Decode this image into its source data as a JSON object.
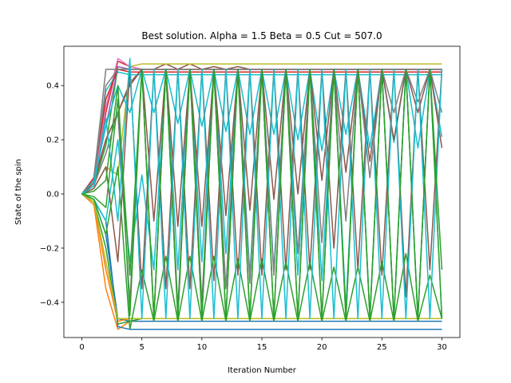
{
  "chart_data": {
    "type": "line",
    "title": "Best solution. Alpha = 1.5 Beta = 0.5 Cut = 507.0",
    "xlabel": "Iteration Number",
    "ylabel": "State of the spin",
    "xlim": [
      -1.5,
      31.5
    ],
    "ylim": [
      -0.53,
      0.545
    ],
    "xticks": [
      0,
      5,
      10,
      15,
      20,
      25,
      30
    ],
    "yticks": [
      -0.4,
      -0.2,
      0.0,
      0.2,
      0.4
    ],
    "grid": false,
    "x": [
      0,
      1,
      2,
      3,
      4,
      5,
      6,
      7,
      8,
      9,
      10,
      11,
      12,
      13,
      14,
      15,
      16,
      17,
      18,
      19,
      20,
      21,
      22,
      23,
      24,
      25,
      26,
      27,
      28,
      29,
      30
    ],
    "series": [
      {
        "color": "#1f77b4",
        "values": [
          0,
          -0.02,
          -0.15,
          -0.46,
          -0.47,
          -0.47,
          -0.47,
          -0.47,
          -0.47,
          -0.47,
          -0.47,
          -0.47,
          -0.47,
          -0.47,
          -0.47,
          -0.47,
          -0.47,
          -0.47,
          -0.47,
          -0.47,
          -0.47,
          -0.47,
          -0.47,
          -0.47,
          -0.47,
          -0.47,
          -0.47,
          -0.47,
          -0.47,
          -0.47,
          -0.47
        ]
      },
      {
        "color": "#ff7f0e",
        "values": [
          0,
          -0.04,
          -0.35,
          -0.5,
          -0.47,
          -0.46,
          -0.46,
          -0.46,
          -0.46,
          -0.46,
          -0.46,
          -0.46,
          -0.46,
          -0.46,
          -0.46,
          -0.46,
          -0.46,
          -0.46,
          -0.46,
          -0.46,
          -0.46,
          -0.46,
          -0.46,
          -0.46,
          -0.46,
          -0.46,
          -0.46,
          -0.46,
          -0.46,
          -0.46,
          -0.46
        ]
      },
      {
        "color": "#2ca02c",
        "values": [
          0,
          0.03,
          0.18,
          0.47,
          0.46,
          0.46,
          0.46,
          0.46,
          0.46,
          0.46,
          0.46,
          0.46,
          0.46,
          0.46,
          0.46,
          0.46,
          0.46,
          0.46,
          0.46,
          0.46,
          0.46,
          0.46,
          0.46,
          0.46,
          0.46,
          0.46,
          0.46,
          0.46,
          0.46,
          0.46,
          0.46
        ]
      },
      {
        "color": "#d62728",
        "values": [
          0,
          0.05,
          0.3,
          0.49,
          0.47,
          0.46,
          0.46,
          0.46,
          0.46,
          0.46,
          0.46,
          0.46,
          0.46,
          0.46,
          0.46,
          0.46,
          0.46,
          0.46,
          0.46,
          0.46,
          0.46,
          0.46,
          0.46,
          0.46,
          0.46,
          0.46,
          0.46,
          0.46,
          0.46,
          0.46,
          0.46
        ]
      },
      {
        "color": "#9467bd",
        "values": [
          0,
          0.04,
          0.25,
          0.47,
          0.46,
          0.46,
          0.46,
          0.46,
          0.46,
          0.46,
          0.46,
          0.46,
          0.46,
          0.46,
          0.46,
          0.46,
          0.46,
          0.46,
          0.46,
          0.46,
          0.46,
          0.46,
          0.46,
          0.46,
          0.46,
          0.46,
          0.46,
          0.46,
          0.46,
          0.46,
          0.46
        ]
      },
      {
        "color": "#8c564b",
        "values": [
          0,
          0.05,
          0.2,
          0.3,
          0.41,
          0.46,
          0.46,
          0.48,
          0.46,
          0.48,
          0.46,
          0.47,
          0.46,
          0.47,
          0.46,
          0.46,
          0.46,
          0.46,
          0.46,
          0.46,
          0.46,
          0.46,
          0.46,
          0.46,
          0.46,
          0.46,
          0.46,
          0.46,
          0.46,
          0.46,
          0.46
        ]
      },
      {
        "color": "#e377c2",
        "values": [
          0,
          0.04,
          0.32,
          0.5,
          0.47,
          0.46,
          0.46,
          0.46,
          0.46,
          0.46,
          0.46,
          0.46,
          0.46,
          0.46,
          0.46,
          0.46,
          0.46,
          0.46,
          0.46,
          0.46,
          0.46,
          0.46,
          0.46,
          0.46,
          0.46,
          0.46,
          0.46,
          0.46,
          0.46,
          0.46,
          0.46
        ]
      },
      {
        "color": "#7f7f7f",
        "values": [
          0,
          0.06,
          0.46,
          0.46,
          0.46,
          0.46,
          0.46,
          0.46,
          0.46,
          0.46,
          0.46,
          0.46,
          0.46,
          0.46,
          0.46,
          0.46,
          0.46,
          0.46,
          0.46,
          0.46,
          0.46,
          0.46,
          0.46,
          0.46,
          0.46,
          0.46,
          0.46,
          0.46,
          0.46,
          0.46,
          0.46
        ]
      },
      {
        "color": "#bcbd22",
        "values": [
          0,
          0.02,
          0.1,
          0.07,
          0.47,
          0.48,
          0.48,
          0.48,
          0.48,
          0.48,
          0.48,
          0.48,
          0.48,
          0.48,
          0.48,
          0.48,
          0.48,
          0.48,
          0.48,
          0.48,
          0.48,
          0.48,
          0.48,
          0.48,
          0.48,
          0.48,
          0.48,
          0.48,
          0.48,
          0.48,
          0.48
        ]
      },
      {
        "color": "#17becf",
        "values": [
          0,
          0.06,
          0.38,
          0.45,
          0.44,
          0.44,
          0.44,
          0.44,
          0.44,
          0.44,
          0.44,
          0.44,
          0.44,
          0.44,
          0.44,
          0.44,
          0.44,
          0.44,
          0.44,
          0.44,
          0.44,
          0.44,
          0.44,
          0.44,
          0.44,
          0.44,
          0.44,
          0.44,
          0.44,
          0.44,
          0.44
        ]
      },
      {
        "color": "#1f77b4",
        "values": [
          0,
          -0.02,
          -0.1,
          -0.49,
          -0.5,
          -0.5,
          -0.5,
          -0.5,
          -0.5,
          -0.5,
          -0.5,
          -0.5,
          -0.5,
          -0.5,
          -0.5,
          -0.5,
          -0.5,
          -0.5,
          -0.5,
          -0.5,
          -0.5,
          -0.5,
          -0.5,
          -0.5,
          -0.5,
          -0.5,
          -0.5,
          -0.5,
          -0.5,
          -0.5,
          -0.5
        ]
      },
      {
        "color": "#ff7f0e",
        "values": [
          0,
          -0.03,
          -0.28,
          -0.47,
          -0.46,
          -0.46,
          -0.46,
          -0.46,
          -0.46,
          -0.46,
          -0.46,
          -0.46,
          -0.46,
          -0.46,
          -0.46,
          -0.46,
          -0.46,
          -0.46,
          -0.46,
          -0.46,
          -0.46,
          -0.46,
          -0.46,
          -0.46,
          -0.46,
          -0.46,
          -0.46,
          -0.46,
          -0.46,
          -0.46,
          -0.46
        ]
      },
      {
        "color": "#2ca02c",
        "values": [
          0,
          -0.03,
          -0.2,
          -0.48,
          -0.47,
          -0.46,
          -0.46,
          -0.46,
          -0.46,
          -0.46,
          -0.46,
          -0.46,
          -0.46,
          -0.46,
          -0.46,
          -0.46,
          -0.46,
          -0.46,
          -0.46,
          -0.46,
          -0.46,
          -0.46,
          -0.46,
          -0.46,
          -0.46,
          -0.46,
          -0.46,
          -0.46,
          -0.46,
          -0.46,
          -0.46
        ]
      },
      {
        "color": "#d62728",
        "values": [
          0,
          0.06,
          0.35,
          0.46,
          0.45,
          0.45,
          0.45,
          0.45,
          0.45,
          0.45,
          0.45,
          0.45,
          0.45,
          0.45,
          0.45,
          0.45,
          0.45,
          0.45,
          0.45,
          0.45,
          0.45,
          0.45,
          0.45,
          0.45,
          0.45,
          0.45,
          0.45,
          0.45,
          0.45,
          0.45,
          0.45
        ]
      },
      {
        "color": "#bcbd22",
        "values": [
          0,
          -0.03,
          -0.25,
          -0.46,
          -0.46,
          -0.46,
          -0.46,
          -0.46,
          -0.46,
          -0.46,
          -0.46,
          -0.46,
          -0.46,
          -0.46,
          -0.46,
          -0.46,
          -0.46,
          -0.46,
          -0.46,
          -0.46,
          -0.46,
          -0.46,
          -0.46,
          -0.46,
          -0.46,
          -0.46,
          -0.46,
          -0.46,
          -0.46,
          -0.46,
          -0.46
        ]
      },
      {
        "color": "#7f7f7f",
        "values": [
          0,
          0.05,
          0.4,
          0.46,
          0.46,
          0.46,
          0.46,
          0.46,
          0.46,
          0.46,
          0.46,
          0.46,
          0.46,
          0.46,
          0.46,
          0.46,
          0.46,
          0.46,
          0.46,
          0.46,
          0.46,
          0.46,
          0.46,
          0.46,
          0.46,
          0.46,
          0.46,
          0.46,
          0.46,
          0.46,
          0.46
        ]
      },
      {
        "color": "#17becf",
        "values": [
          0,
          0.05,
          0.25,
          0.4,
          0.3,
          0.46,
          0.3,
          0.46,
          0.26,
          0.46,
          0.25,
          0.46,
          0.23,
          0.46,
          0.22,
          0.46,
          0.22,
          0.46,
          0.2,
          0.46,
          0.16,
          0.46,
          0.22,
          0.46,
          0.17,
          0.46,
          0.19,
          0.46,
          0.17,
          0.46,
          0.21
        ]
      },
      {
        "color": "#17becf",
        "values": [
          0,
          -0.02,
          -0.1,
          0.2,
          -0.25,
          0.07,
          -0.28,
          0.46,
          -0.28,
          0.46,
          -0.25,
          0.46,
          -0.22,
          0.46,
          -0.3,
          0.46,
          -0.28,
          0.46,
          -0.3,
          0.46,
          -0.32,
          0.46,
          -0.42,
          0.46,
          -0.45,
          0.46,
          -0.46,
          0.46,
          -0.46,
          0.46,
          -0.46
        ]
      },
      {
        "color": "#8c564b",
        "values": [
          0,
          0.02,
          0.1,
          -0.25,
          0.46,
          -0.35,
          0.46,
          -0.35,
          0.46,
          -0.35,
          0.46,
          -0.32,
          0.46,
          -0.3,
          0.46,
          -0.3,
          0.46,
          -0.28,
          0.46,
          -0.28,
          0.46,
          -0.2,
          0.46,
          -0.28,
          0.46,
          -0.3,
          0.46,
          -0.38,
          0.46,
          -0.28,
          0.46
        ]
      },
      {
        "color": "#8c564b",
        "values": [
          0,
          0.04,
          0.2,
          0.3,
          0.4,
          0.46,
          -0.1,
          0.46,
          -0.12,
          0.46,
          -0.12,
          0.46,
          -0.08,
          0.46,
          -0.06,
          0.46,
          -0.02,
          0.46,
          0.0,
          0.46,
          0.05,
          0.46,
          0.08,
          0.46,
          0.12,
          0.46,
          0.2,
          0.46,
          0.3,
          0.46,
          0.17
        ]
      },
      {
        "color": "#7f7f7f",
        "values": [
          0,
          0.03,
          0.15,
          0.3,
          -0.4,
          0.46,
          -0.45,
          0.46,
          -0.42,
          0.46,
          -0.4,
          0.46,
          -0.35,
          0.46,
          -0.33,
          0.46,
          -0.3,
          0.46,
          -0.22,
          0.46,
          -0.18,
          0.46,
          -0.1,
          0.46,
          0.06,
          0.46,
          0.3,
          0.46,
          0.34,
          0.46,
          0.3
        ]
      },
      {
        "color": "#2ca02c",
        "values": [
          0,
          -0.02,
          -0.15,
          0.1,
          -0.5,
          -0.28,
          -0.47,
          -0.23,
          -0.47,
          -0.23,
          -0.47,
          -0.23,
          -0.47,
          -0.24,
          -0.47,
          -0.24,
          -0.47,
          -0.25,
          -0.47,
          -0.25,
          -0.47,
          -0.27,
          -0.47,
          -0.27,
          -0.47,
          -0.25,
          -0.47,
          -0.22,
          -0.47,
          -0.3,
          -0.46
        ]
      },
      {
        "color": "#2ca02c",
        "values": [
          0,
          0.01,
          0.05,
          0.4,
          -0.45,
          0.46,
          -0.46,
          0.46,
          -0.46,
          0.46,
          -0.46,
          0.46,
          -0.46,
          0.46,
          -0.46,
          0.46,
          -0.46,
          0.46,
          -0.46,
          0.46,
          -0.46,
          0.46,
          -0.46,
          0.46,
          -0.46,
          0.46,
          -0.46,
          0.46,
          -0.46,
          0.46,
          -0.46
        ]
      },
      {
        "color": "#17becf",
        "values": [
          0,
          0.03,
          0.28,
          -0.1,
          0.5,
          -0.46,
          0.46,
          -0.46,
          0.46,
          -0.46,
          0.46,
          -0.46,
          0.46,
          -0.46,
          0.46,
          -0.46,
          0.46,
          -0.46,
          0.46,
          -0.46,
          0.46,
          -0.46,
          0.46,
          -0.46,
          0.46,
          -0.46,
          0.46,
          -0.46,
          0.46,
          -0.46,
          0.46
        ]
      },
      {
        "color": "#2ca02c",
        "values": [
          0,
          -0.01,
          -0.05,
          0.35,
          -0.3,
          0.46,
          -0.46,
          0.46,
          -0.46,
          0.46,
          -0.46,
          0.46,
          -0.46,
          0.46,
          -0.46,
          0.46,
          -0.46,
          0.46,
          -0.46,
          0.46,
          -0.46,
          0.46,
          -0.46,
          0.46,
          -0.46,
          0.46,
          -0.46,
          0.46,
          -0.46,
          0.46,
          -0.28
        ]
      }
    ]
  }
}
